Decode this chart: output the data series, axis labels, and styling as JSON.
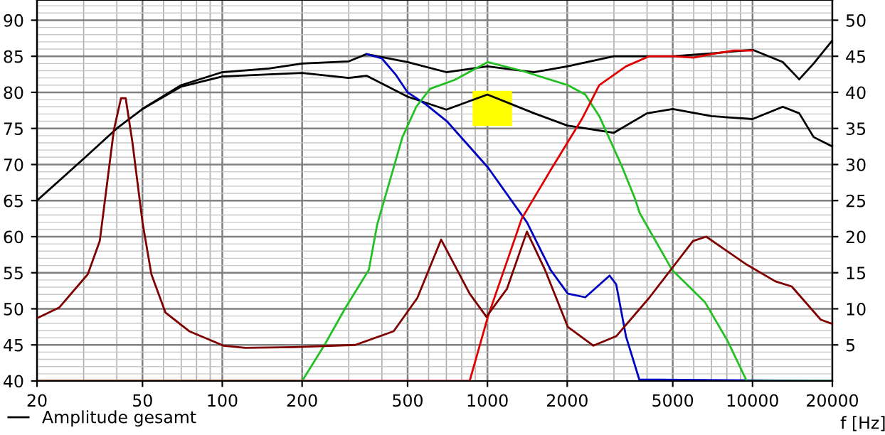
{
  "chart_data": {
    "type": "line",
    "xlabel": "f [Hz]",
    "log": "x",
    "grid": true,
    "legend": "bottom left",
    "marker": "none",
    "line_style": "solid",
    "xlim": [
      20,
      20000
    ],
    "xticks": [
      20,
      50,
      100,
      200,
      500,
      1000,
      2000,
      5000,
      10000,
      20000
    ],
    "ylim": [
      40,
      92.8
    ],
    "yticks": [
      40,
      45,
      50,
      55,
      60,
      65,
      70,
      75,
      80,
      85,
      90
    ],
    "y2lim": [
      0,
      52.8
    ],
    "y2ticks": [
      5,
      10,
      15,
      20,
      25,
      30,
      35,
      40,
      45,
      50
    ],
    "series": [
      {
        "name": "Amplitude gesamt",
        "color": "#000000",
        "x": [
          20,
          30,
          40,
          50,
          70,
          100,
          150,
          200,
          300,
          350,
          500,
          700,
          1000,
          1500,
          2000,
          3000,
          4000,
          5000,
          7000,
          10000,
          13000,
          15000,
          17000,
          20000
        ],
        "values": [
          65,
          70.8,
          75,
          77.7,
          81,
          82.8,
          83.3,
          84,
          84.3,
          85.3,
          84.2,
          82.8,
          83.6,
          82.8,
          83.6,
          85,
          85,
          85,
          85.4,
          85.9,
          84.2,
          81.8,
          84,
          87.2
        ]
      },
      {
        "color": "#000000",
        "x": [
          50,
          70,
          100,
          150,
          200,
          300,
          350,
          500,
          700,
          1000,
          1500,
          2000,
          3000,
          4000,
          5000,
          7000,
          10000,
          13000,
          15000,
          17000,
          20000
        ],
        "values": [
          77.7,
          80.8,
          82.2,
          82.5,
          82.7,
          82,
          82.3,
          79.4,
          77.6,
          79.7,
          77.1,
          75.4,
          74.4,
          77.1,
          77.7,
          76.7,
          76.3,
          78,
          77.1,
          73.8,
          72.5
        ]
      },
      {
        "color": "#0000c0",
        "x": [
          350,
          400,
          450,
          500,
          587,
          703,
          1004,
          1409,
          1730,
          2010,
          2340,
          2890,
          3060,
          3330,
          3740,
          20000
        ],
        "values": [
          85.3,
          84.7,
          82.5,
          80,
          78.3,
          76,
          69.6,
          62,
          55.4,
          52.1,
          51.6,
          54.6,
          53.4,
          46.2,
          40.2,
          40
        ]
      },
      {
        "color": "#22c022",
        "x": [
          20,
          200,
          243,
          292,
          357,
          384,
          478,
          539,
          608,
          749,
          1004,
          1347,
          2010,
          2340,
          2642,
          3210,
          3600,
          3750,
          4970,
          6620,
          8040,
          9510,
          20000
        ],
        "values": [
          40,
          40,
          45,
          50.2,
          55.4,
          61.7,
          73.8,
          78,
          80.5,
          81.7,
          84.2,
          83,
          81,
          79.7,
          76.7,
          69.8,
          65.3,
          63.3,
          55.4,
          50.9,
          45.6,
          40,
          40
        ]
      },
      {
        "color": "#e00000",
        "x": [
          20,
          857,
          1004,
          1347,
          1730,
          2280,
          2640,
          3330,
          4070,
          5000,
          6000,
          7000,
          8500,
          10000
        ],
        "values": [
          40,
          40,
          48.9,
          62.5,
          69.2,
          76.4,
          81,
          83.6,
          85,
          85,
          84.8,
          85.3,
          85.8,
          85.8
        ]
      },
      {
        "color": "#800000",
        "axis": "y2",
        "x": [
          20,
          24.3,
          31.1,
          34.5,
          39,
          41.5,
          43.2,
          45.8,
          50,
          54,
          61,
          75,
          101,
          122,
          187,
          318,
          443,
          544,
          669,
          857,
          991,
          1186,
          1409,
          1649,
          2010,
          2510,
          3060,
          4070,
          5960,
          6680,
          9530,
          12200,
          14050,
          18080,
          20000
        ],
        "values": [
          8.7,
          10.2,
          14.8,
          19.4,
          34.8,
          39.2,
          39.2,
          33.1,
          22,
          14.8,
          9.5,
          6.9,
          4.9,
          4.6,
          4.7,
          5,
          6.9,
          11.5,
          19.6,
          12.1,
          8.9,
          12.8,
          20.7,
          15.4,
          7.5,
          4.9,
          6.2,
          11.5,
          19.4,
          20,
          16.1,
          13.8,
          13.1,
          8.5,
          7.9
        ]
      }
    ]
  }
}
